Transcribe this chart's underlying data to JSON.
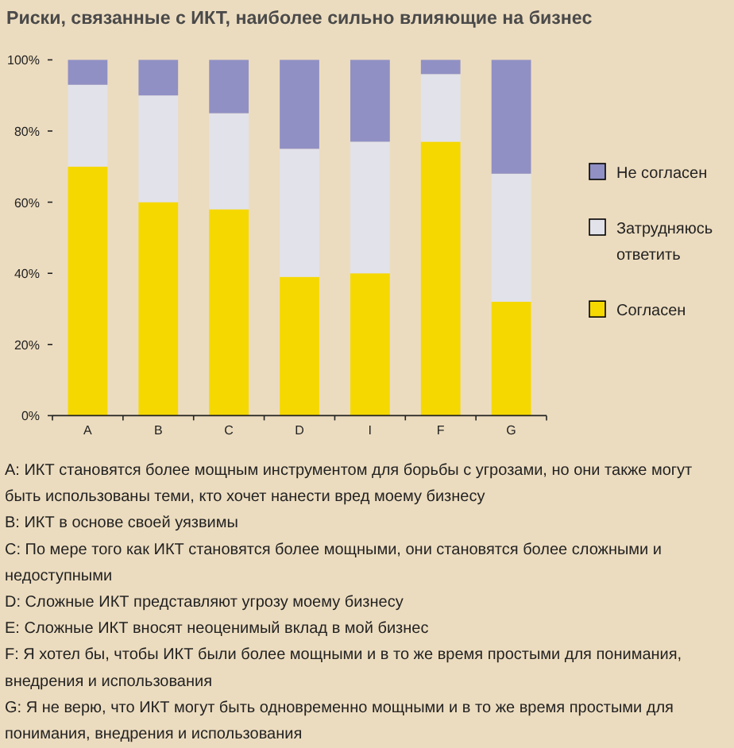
{
  "chart_data": {
    "type": "bar",
    "title": "Риски, связанные с ИКТ, наиболее сильно влияющие на бизнес",
    "categories": [
      "A",
      "B",
      "C",
      "D",
      "I",
      "F",
      "G"
    ],
    "stacked": true,
    "series": [
      {
        "name": "Согласен",
        "color": "#f5d800",
        "values": [
          70,
          60,
          58,
          39,
          40,
          77,
          32
        ]
      },
      {
        "name": "Затрудняюсь ответить",
        "color": "#e2e2ea",
        "values": [
          23,
          30,
          27,
          36,
          37,
          19,
          36
        ]
      },
      {
        "name": "Не согласен",
        "color": "#9090c4",
        "values": [
          7,
          10,
          15,
          25,
          23,
          4,
          32
        ]
      }
    ],
    "ylim": [
      0,
      100
    ],
    "yticks": [
      {
        "value": 0,
        "label": "0%"
      },
      {
        "value": 20,
        "label": "20%"
      },
      {
        "value": 40,
        "label": "40%"
      },
      {
        "value": 60,
        "label": "60%"
      },
      {
        "value": 80,
        "label": "80%"
      },
      {
        "value": 100,
        "label": "100%"
      }
    ],
    "legend": "right",
    "annotations": [
      "A: ИКТ становятся более мощным инструментом для борьбы с угрозами, но они также могут быть использованы теми, кто хочет нанести вред моему бизнесу",
      "B: ИКТ в основе своей уязвимы",
      "C: По мере того как ИКТ становятся более мощными, они становятся более сложными и недоступными",
      "D: Сложные ИКТ представляют угрозу моему бизнесу",
      "E: Сложные ИКТ вносят неоценимый вклад в мой бизнес",
      "F: Я хотел бы, чтобы ИКТ были более мощными и в то же время простыми для понимания, внедрения и использования",
      "G: Я не верю, что ИКТ могут быть одновременно мощными и в то же время простыми для понимания, внедрения и использования"
    ]
  }
}
